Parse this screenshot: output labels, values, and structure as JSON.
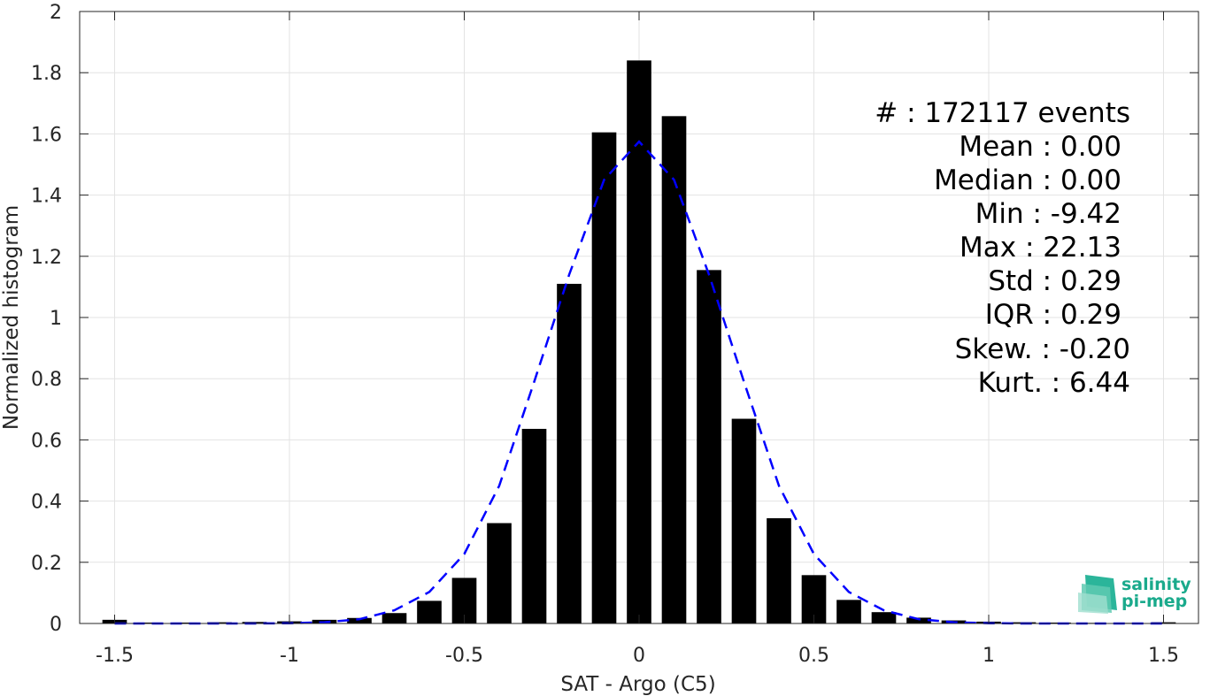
{
  "chart_data": {
    "type": "bar",
    "xlabel": "SAT - Argo (C5)",
    "ylabel": "Normalized histogram",
    "xlim": [
      -1.6,
      1.6
    ],
    "ylim": [
      0,
      2
    ],
    "grid": true,
    "x_ticks": [
      -1.5,
      -1,
      -0.5,
      0,
      0.5,
      1,
      1.5
    ],
    "x_tick_labels": [
      "-1.5",
      "-1",
      "-0.5",
      "0",
      "0.5",
      "1",
      "1.5"
    ],
    "y_ticks": [
      0,
      0.2,
      0.4,
      0.6,
      0.8,
      1,
      1.2,
      1.4,
      1.6,
      1.8,
      2
    ],
    "y_tick_labels": [
      "0",
      "0.2",
      "0.4",
      "0.6",
      "0.8",
      "1",
      "1.2",
      "1.4",
      "1.6",
      "1.8",
      "2"
    ],
    "bar_color": "#000000",
    "fit_color": "#0000ff",
    "bar_width": 0.07,
    "x": [
      -1.5,
      -1.4,
      -1.3,
      -1.2,
      -1.1,
      -1.0,
      -0.9,
      -0.8,
      -0.7,
      -0.6,
      -0.5,
      -0.4,
      -0.3,
      -0.2,
      -0.1,
      0.0,
      0.1,
      0.2,
      0.3,
      0.4,
      0.5,
      0.6,
      0.7,
      0.8,
      0.9,
      1.0,
      1.1,
      1.2,
      1.3,
      1.4,
      1.5
    ],
    "series": [
      {
        "type": "bar",
        "values": [
          0.012,
          0.003,
          0.003,
          0.004,
          0.005,
          0.007,
          0.012,
          0.018,
          0.034,
          0.074,
          0.149,
          0.328,
          0.636,
          1.11,
          1.605,
          1.84,
          1.658,
          1.155,
          0.669,
          0.344,
          0.158,
          0.077,
          0.037,
          0.019,
          0.01,
          0.006,
          0.004,
          0.003,
          0.002,
          0.002,
          0.004
        ]
      },
      {
        "type": "line",
        "style": "dashed",
        "values": [
          0.0,
          0.0,
          0.0,
          0.0,
          0.0,
          0.001,
          0.004,
          0.014,
          0.043,
          0.103,
          0.227,
          0.45,
          0.79,
          1.14,
          1.45,
          1.575,
          1.45,
          1.14,
          0.79,
          0.45,
          0.227,
          0.103,
          0.043,
          0.014,
          0.004,
          0.001,
          0.0,
          0.0,
          0.0,
          0.0,
          0.0
        ]
      }
    ]
  },
  "stats": {
    "count": "#  : 172117 events",
    "mean": "Mean : 0.00",
    "median": "Median : 0.00",
    "min": "Min : -9.42",
    "max": "Max : 22.13",
    "std": "Std : 0.29",
    "iqr": "IQR : 0.29",
    "skew": "Skew. : -0.20",
    "kurt": "Kurt. : 6.44"
  },
  "logo": {
    "line1": "salinity",
    "line2": "pi-mep",
    "color": "#1aaa8c"
  }
}
